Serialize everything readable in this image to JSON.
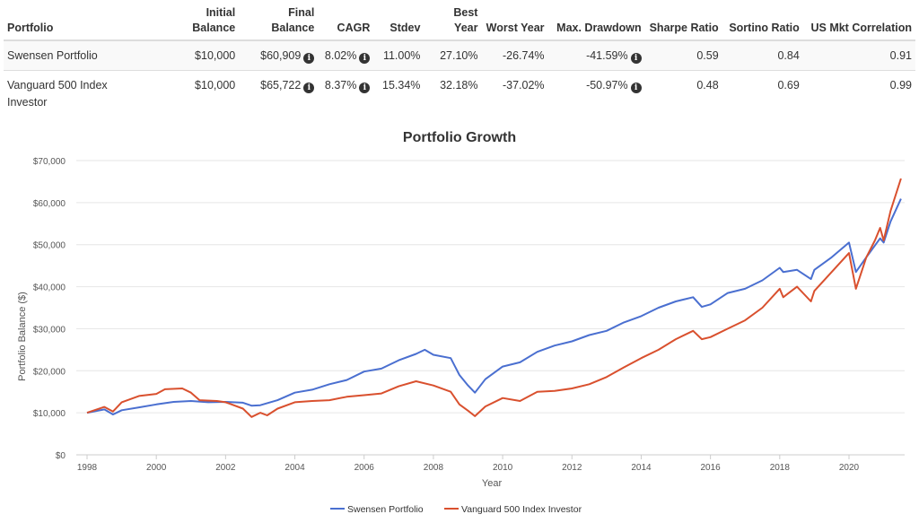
{
  "table": {
    "headers": [
      "Portfolio",
      "Initial Balance",
      "Final Balance",
      "CAGR",
      "Stdev",
      "Best Year",
      "Worst Year",
      "Max. Drawdown",
      "Sharpe Ratio",
      "Sortino Ratio",
      "US Mkt Correlation"
    ],
    "rows": [
      [
        "Swensen Portfolio",
        "$10,000",
        "$60,909",
        "8.02%",
        "11.00%",
        "27.10%",
        "-26.74%",
        "-41.59%",
        "0.59",
        "0.84",
        "0.91"
      ],
      [
        "Vanguard 500 Index Investor",
        "$10,000",
        "$65,722",
        "8.37%",
        "15.34%",
        "32.18%",
        "-37.02%",
        "-50.97%",
        "0.48",
        "0.69",
        "0.99"
      ]
    ],
    "info_icon": "info-circle-icon"
  },
  "chart_data": {
    "type": "line",
    "title": "Portfolio Growth",
    "xlabel": "Year",
    "ylabel": "Portfolio Balance ($)",
    "xlim": [
      1997.7,
      2021.7
    ],
    "ylim": [
      0,
      70000
    ],
    "xticks": [
      "1998",
      "2000",
      "2002",
      "2004",
      "2006",
      "2008",
      "2010",
      "2012",
      "2014",
      "2016",
      "2018",
      "2020"
    ],
    "yticks": [
      "$0",
      "$10,000",
      "$20,000",
      "$30,000",
      "$40,000",
      "$50,000",
      "$60,000",
      "$70,000"
    ],
    "grid": true,
    "legend": "bottom",
    "series": [
      {
        "name": "Swensen Portfolio",
        "color": "#4a6fd0",
        "x": [
          1998,
          1998.5,
          1998.75,
          1999,
          1999.5,
          2000,
          2000.5,
          2001,
          2001.5,
          2002,
          2002.5,
          2002.75,
          2003,
          2003.5,
          2004,
          2004.5,
          2005,
          2005.5,
          2006,
          2006.5,
          2007,
          2007.5,
          2007.75,
          2008,
          2008.5,
          2008.75,
          2009,
          2009.2,
          2009.5,
          2010,
          2010.5,
          2011,
          2011.5,
          2012,
          2012.5,
          2013,
          2013.5,
          2014,
          2014.5,
          2015,
          2015.5,
          2015.75,
          2016,
          2016.5,
          2017,
          2017.5,
          2018,
          2018.1,
          2018.5,
          2018.9,
          2019,
          2019.5,
          2020,
          2020.2,
          2020.5,
          2020.9,
          2021,
          2021.2,
          2021.5
        ],
        "values": [
          10000,
          10800,
          9600,
          10600,
          11300,
          12000,
          12600,
          12800,
          12500,
          12600,
          12400,
          11700,
          11800,
          13000,
          14800,
          15500,
          16800,
          17800,
          19800,
          20500,
          22500,
          24000,
          25000,
          23800,
          23000,
          19000,
          16500,
          14800,
          18000,
          21000,
          22000,
          24500,
          26000,
          27000,
          28500,
          29500,
          31500,
          33000,
          35000,
          36500,
          37500,
          35200,
          35800,
          38500,
          39500,
          41500,
          44500,
          43500,
          44000,
          41800,
          44000,
          47000,
          50500,
          43500,
          47000,
          51500,
          50500,
          55500,
          60909
        ]
      },
      {
        "name": "Vanguard 500 Index Investor",
        "color": "#d9502e",
        "x": [
          1998,
          1998.5,
          1998.75,
          1999,
          1999.5,
          2000,
          2000.25,
          2000.75,
          2001,
          2001.25,
          2001.75,
          2002,
          2002.5,
          2002.75,
          2003,
          2003.2,
          2003.5,
          2004,
          2004.5,
          2005,
          2005.5,
          2006,
          2006.5,
          2007,
          2007.5,
          2008,
          2008.5,
          2008.75,
          2009,
          2009.2,
          2009.5,
          2010,
          2010.5,
          2011,
          2011.5,
          2012,
          2012.5,
          2013,
          2013.5,
          2014,
          2014.5,
          2015,
          2015.5,
          2015.75,
          2016,
          2016.5,
          2017,
          2017.5,
          2018,
          2018.1,
          2018.5,
          2018.9,
          2019,
          2019.5,
          2020,
          2020.2,
          2020.5,
          2020.75,
          2020.9,
          2021,
          2021.2,
          2021.5
        ],
        "values": [
          10000,
          11400,
          10300,
          12500,
          14000,
          14500,
          15600,
          15800,
          14800,
          13000,
          12800,
          12500,
          11000,
          9000,
          10000,
          9400,
          11000,
          12500,
          12800,
          13000,
          13800,
          14200,
          14600,
          16300,
          17500,
          16500,
          15000,
          12000,
          10500,
          9200,
          11500,
          13500,
          12800,
          15000,
          15200,
          15800,
          16800,
          18500,
          20800,
          23000,
          25000,
          27500,
          29500,
          27500,
          28000,
          30000,
          32000,
          35000,
          39500,
          37500,
          40000,
          36500,
          39000,
          43500,
          48000,
          39500,
          47000,
          51000,
          54000,
          51000,
          58000,
          65722
        ]
      }
    ]
  }
}
